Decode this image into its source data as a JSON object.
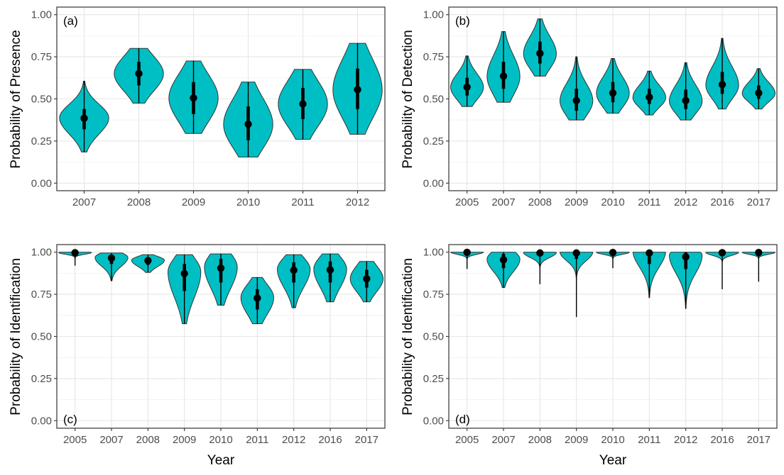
{
  "chart_data": [
    {
      "panel_label": "(a)",
      "type": "violin",
      "ylabel": "Probability of Presence",
      "xlabel": "",
      "ylim": [
        0,
        1
      ],
      "yticks": [
        "0.00",
        "0.25",
        "0.50",
        "0.75",
        "1.00"
      ],
      "categories": [
        "2007",
        "2008",
        "2009",
        "2010",
        "2011",
        "2012"
      ],
      "median": [
        0.385,
        0.65,
        0.505,
        0.35,
        0.47,
        0.555
      ],
      "inner_low": [
        0.32,
        0.58,
        0.41,
        0.255,
        0.38,
        0.44
      ],
      "inner_high": [
        0.44,
        0.72,
        0.6,
        0.455,
        0.565,
        0.68
      ],
      "outer_low": [
        0.185,
        0.475,
        0.295,
        0.155,
        0.26,
        0.29
      ],
      "outer_high": [
        0.605,
        0.8,
        0.725,
        0.6,
        0.675,
        0.83
      ],
      "fill_color": "#00BFC4"
    },
    {
      "panel_label": "(b)",
      "type": "violin",
      "ylabel": "Probability of Detection",
      "xlabel": "",
      "ylim": [
        0,
        1
      ],
      "yticks": [
        "0.00",
        "0.25",
        "0.50",
        "0.75",
        "1.00"
      ],
      "categories": [
        "2005",
        "2007",
        "2008",
        "2009",
        "2010",
        "2011",
        "2012",
        "2016",
        "2017"
      ],
      "median": [
        0.57,
        0.635,
        0.77,
        0.49,
        0.535,
        0.51,
        0.49,
        0.585,
        0.535
      ],
      "inner_low": [
        0.52,
        0.56,
        0.71,
        0.43,
        0.48,
        0.47,
        0.44,
        0.53,
        0.5
      ],
      "inner_high": [
        0.625,
        0.72,
        0.84,
        0.56,
        0.6,
        0.56,
        0.555,
        0.66,
        0.58
      ],
      "outer_low": [
        0.455,
        0.48,
        0.635,
        0.375,
        0.415,
        0.405,
        0.375,
        0.44,
        0.44
      ],
      "outer_high": [
        0.755,
        0.9,
        0.975,
        0.75,
        0.74,
        0.665,
        0.715,
        0.86,
        0.68
      ],
      "fill_color": "#00BFC4"
    },
    {
      "panel_label": "(c)",
      "type": "violin",
      "ylabel": "Probability of Identification",
      "xlabel": "Year",
      "ylim": [
        0,
        1
      ],
      "yticks": [
        "0.00",
        "0.25",
        "0.50",
        "0.75",
        "1.00"
      ],
      "categories": [
        "2005",
        "2007",
        "2008",
        "2009",
        "2010",
        "2011",
        "2012",
        "2016",
        "2017"
      ],
      "median": [
        0.997,
        0.965,
        0.95,
        0.873,
        0.905,
        0.727,
        0.893,
        0.895,
        0.842
      ],
      "inner_low": [
        0.99,
        0.93,
        0.925,
        0.77,
        0.82,
        0.66,
        0.82,
        0.82,
        0.79
      ],
      "inner_high": [
        1.0,
        0.985,
        0.965,
        0.93,
        0.96,
        0.78,
        0.94,
        0.945,
        0.895
      ],
      "outer_low": [
        0.92,
        0.83,
        0.88,
        0.575,
        0.685,
        0.575,
        0.67,
        0.705,
        0.705
      ],
      "outer_high": [
        1.0,
        0.995,
        0.985,
        0.985,
        0.99,
        0.85,
        0.985,
        0.99,
        0.945
      ],
      "fill_color": "#00BFC4"
    },
    {
      "panel_label": "(d)",
      "type": "violin",
      "ylabel": "Probability of Identification",
      "xlabel": "Year",
      "ylim": [
        0,
        1
      ],
      "yticks": [
        "0.00",
        "0.25",
        "0.50",
        "0.75",
        "1.00"
      ],
      "categories": [
        "2005",
        "2007",
        "2008",
        "2009",
        "2010",
        "2011",
        "2012",
        "2016",
        "2017"
      ],
      "median": [
        0.999,
        0.955,
        0.995,
        0.995,
        0.998,
        0.995,
        0.972,
        0.997,
        0.998
      ],
      "inner_low": [
        0.99,
        0.905,
        0.975,
        0.96,
        0.99,
        0.93,
        0.9,
        0.985,
        0.99
      ],
      "inner_high": [
        1.0,
        0.99,
        1.0,
        1.0,
        1.0,
        1.0,
        0.998,
        1.0,
        1.0
      ],
      "outer_low": [
        0.9,
        0.79,
        0.81,
        0.615,
        0.905,
        0.73,
        0.665,
        0.78,
        0.825
      ],
      "outer_high": [
        1.0,
        1.0,
        1.0,
        1.0,
        1.0,
        1.0,
        1.0,
        1.0,
        1.0
      ],
      "fill_color": "#00BFC4"
    }
  ]
}
